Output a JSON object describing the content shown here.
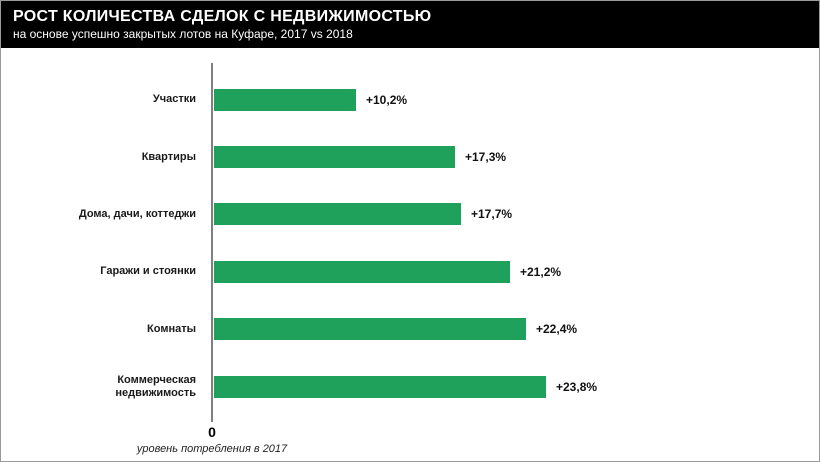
{
  "header": {
    "title": "РОСТ КОЛИЧЕСТВА СДЕЛОК С НЕДВИЖИМОСТЬЮ",
    "subtitle": "на основе успешно закрытых лотов на Куфаре, 2017 vs 2018"
  },
  "chart_data": {
    "type": "bar",
    "orientation": "horizontal",
    "title": "РОСТ КОЛИЧЕСТВА СДЕЛОК С НЕДВИЖИМОСТЬЮ",
    "subtitle": "на основе успешно закрытых лотов на Куфаре, 2017 vs 2018",
    "categories": [
      "Участки",
      "Квартиры",
      "Дома, дачи, коттеджи",
      "Гаражи и стоянки",
      "Комнаты",
      "Коммерческая недвижимость"
    ],
    "category_lines": [
      [
        "Участки"
      ],
      [
        "Квартиры"
      ],
      [
        "Дома, дачи, коттеджи"
      ],
      [
        "Гаражи и стоянки"
      ],
      [
        "Комнаты"
      ],
      [
        "Коммерческая",
        "недвижимость"
      ]
    ],
    "values": [
      10.2,
      17.3,
      17.7,
      21.2,
      22.4,
      23.8
    ],
    "value_labels": [
      "+10,2%",
      "+17,3%",
      "+17,7%",
      "+21,2%",
      "+22,4%",
      "+23,8%"
    ],
    "xlim": [
      0,
      23.8
    ],
    "baseline_label": "0",
    "baseline_caption": "уровень потребления в 2017",
    "bar_color": "#1fa15c",
    "axis_color": "#808080",
    "grid": false,
    "legend": false
  }
}
